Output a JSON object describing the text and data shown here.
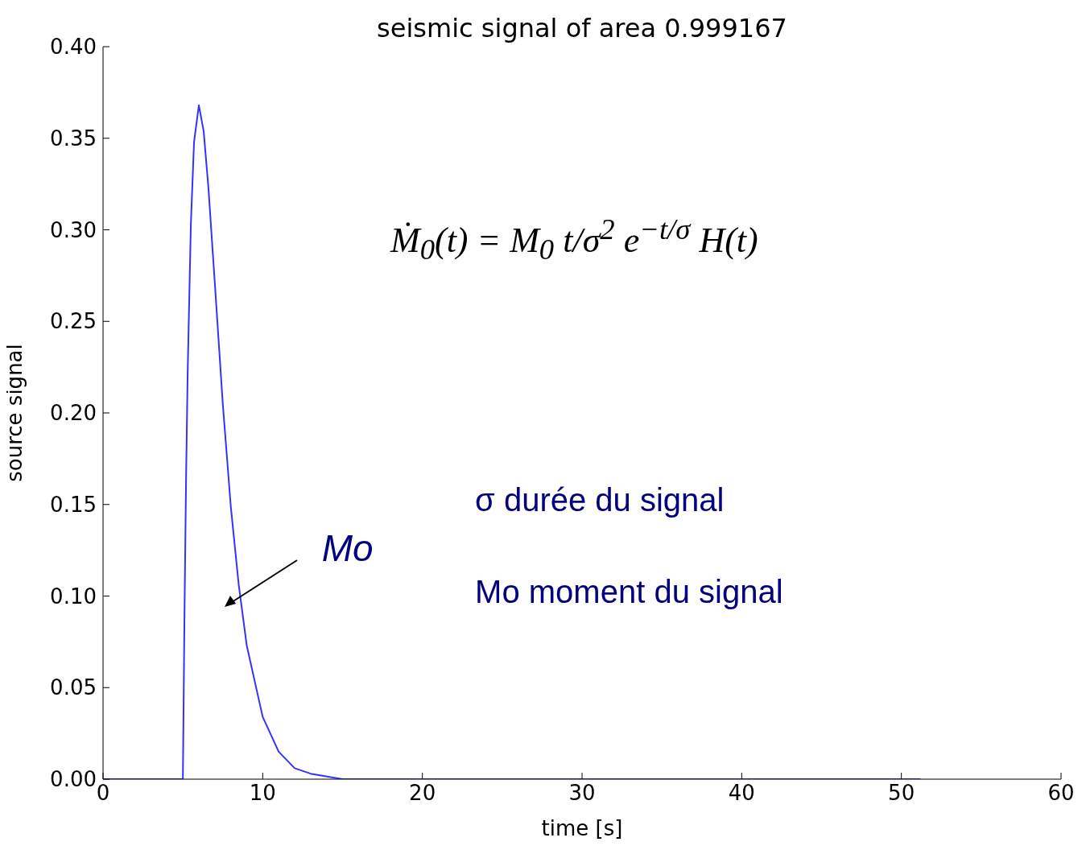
{
  "chart_data": {
    "type": "line",
    "title": "seismic signal of area 0.999167",
    "xlabel": "time [s]",
    "ylabel": "source signal",
    "x": [
      0,
      5,
      5.1,
      5.2,
      5.3,
      5.5,
      5.7,
      6,
      6.3,
      6.6,
      7,
      7.5,
      8,
      8.5,
      9,
      10,
      11,
      12,
      13,
      15,
      51.2
    ],
    "series": [
      {
        "color": "#3333ff",
        "values": [
          0,
          0,
          0.09,
          0.164,
          0.222,
          0.303,
          0.348,
          0.368,
          0.354,
          0.323,
          0.271,
          0.205,
          0.149,
          0.106,
          0.073,
          0.034,
          0.015,
          0.006,
          0.003,
          0,
          0
        ]
      }
    ],
    "xlim": [
      0,
      60
    ],
    "xticks": [
      0,
      10,
      20,
      30,
      40,
      50,
      60
    ],
    "ylim": [
      0,
      0.4
    ],
    "yticks": [
      {
        "value": 0,
        "label": "0.00"
      },
      0.05,
      {
        "value": 0.1,
        "label": "0.10"
      },
      0.15,
      {
        "value": 0.2,
        "label": "0.20"
      },
      0.25,
      {
        "value": 0.3,
        "label": "0.30"
      },
      0.35,
      {
        "value": 0.4,
        "label": "0.40"
      }
    ],
    "grid": false,
    "legend": false,
    "marker": "none",
    "line_style": "solid",
    "annotations": [
      "Ṁ$_{0}$(t) = M$_{0}$ t/σ$^{2}$ e$^{−t/σ}$ H(t)",
      "σ  durée du signal",
      "Mo moment du signal",
      "Mo"
    ]
  }
}
